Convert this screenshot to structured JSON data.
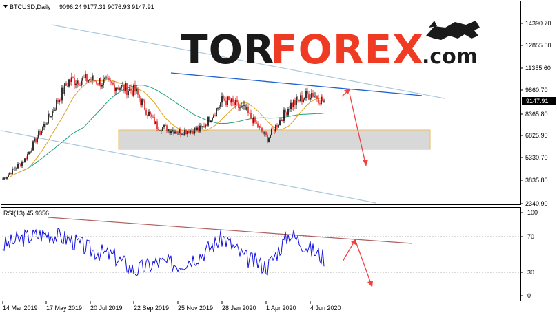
{
  "header": {
    "symbol": "BTCUSD,Daily",
    "ohlc": "9096.24 9177.31 9076.93 9147.91"
  },
  "logo": {
    "part1": "TOR",
    "part2": "FOREX",
    "part3": ".com",
    "icon": "bull-icon"
  },
  "colors": {
    "up_candle": "#000000",
    "down_candle": "#e02020",
    "ma_fast": "#e0a020",
    "ma_slow": "#20a080",
    "channel": "#a8c8dc",
    "resistance": "#2060d0",
    "zone": "#cccccc",
    "rsi": "#1010e0",
    "rsi_trend": "#b06060",
    "arrow": "#f04040",
    "price_box": "#000000"
  },
  "chart_data": [
    {
      "type": "candlestick",
      "title": "BTCUSD,Daily",
      "ohlc_last": {
        "open": 9096.24,
        "high": 9177.31,
        "low": 9076.93,
        "close": 9147.91
      },
      "y_ticks": [
        "14390.70",
        "12855.50",
        "11355.60",
        "9860.70",
        "8365.80",
        "6825.90",
        "5330.70",
        "3835.80",
        "2340.90"
      ],
      "current_price_label": "9147.91",
      "x_ticks": [
        "14 Mar 2019",
        "17 May 2019",
        "20 Jul 2019",
        "22 Sep 2019",
        "25 Nov 2019",
        "28 Jan 2020",
        "1 Apr 2020",
        "4 Jun 2020"
      ],
      "ylim": [
        2340.9,
        15200
      ],
      "x_dates": [
        "2019-03-14",
        "2019-04-15",
        "2019-05-17",
        "2019-06-18",
        "2019-07-20",
        "2019-08-21",
        "2019-09-22",
        "2019-10-24",
        "2019-11-25",
        "2019-12-27",
        "2020-01-28",
        "2020-02-29",
        "2020-04-01",
        "2020-05-03",
        "2020-06-04",
        "2020-06-22"
      ],
      "close_approx": [
        3900,
        5200,
        7900,
        10500,
        10600,
        10200,
        9800,
        7500,
        7100,
        7300,
        9300,
        8600,
        6600,
        8900,
        9700,
        9147.91
      ],
      "support_zone": [
        6200,
        7400
      ]
    },
    {
      "type": "line",
      "title": "RSI(13) 45.9356",
      "y_ticks": [
        "100",
        "70",
        "30",
        "0"
      ],
      "ylim": [
        0,
        100
      ],
      "x_dates": [
        "2019-03-14",
        "2019-04-15",
        "2019-05-17",
        "2019-06-18",
        "2019-07-20",
        "2019-08-21",
        "2019-09-22",
        "2019-10-24",
        "2019-11-25",
        "2019-12-27",
        "2020-01-28",
        "2020-02-29",
        "2020-04-01",
        "2020-05-03",
        "2020-06-04",
        "2020-06-22"
      ],
      "values_approx": [
        60,
        70,
        75,
        68,
        55,
        48,
        30,
        40,
        38,
        50,
        70,
        45,
        35,
        75,
        55,
        45.9356
      ]
    }
  ]
}
